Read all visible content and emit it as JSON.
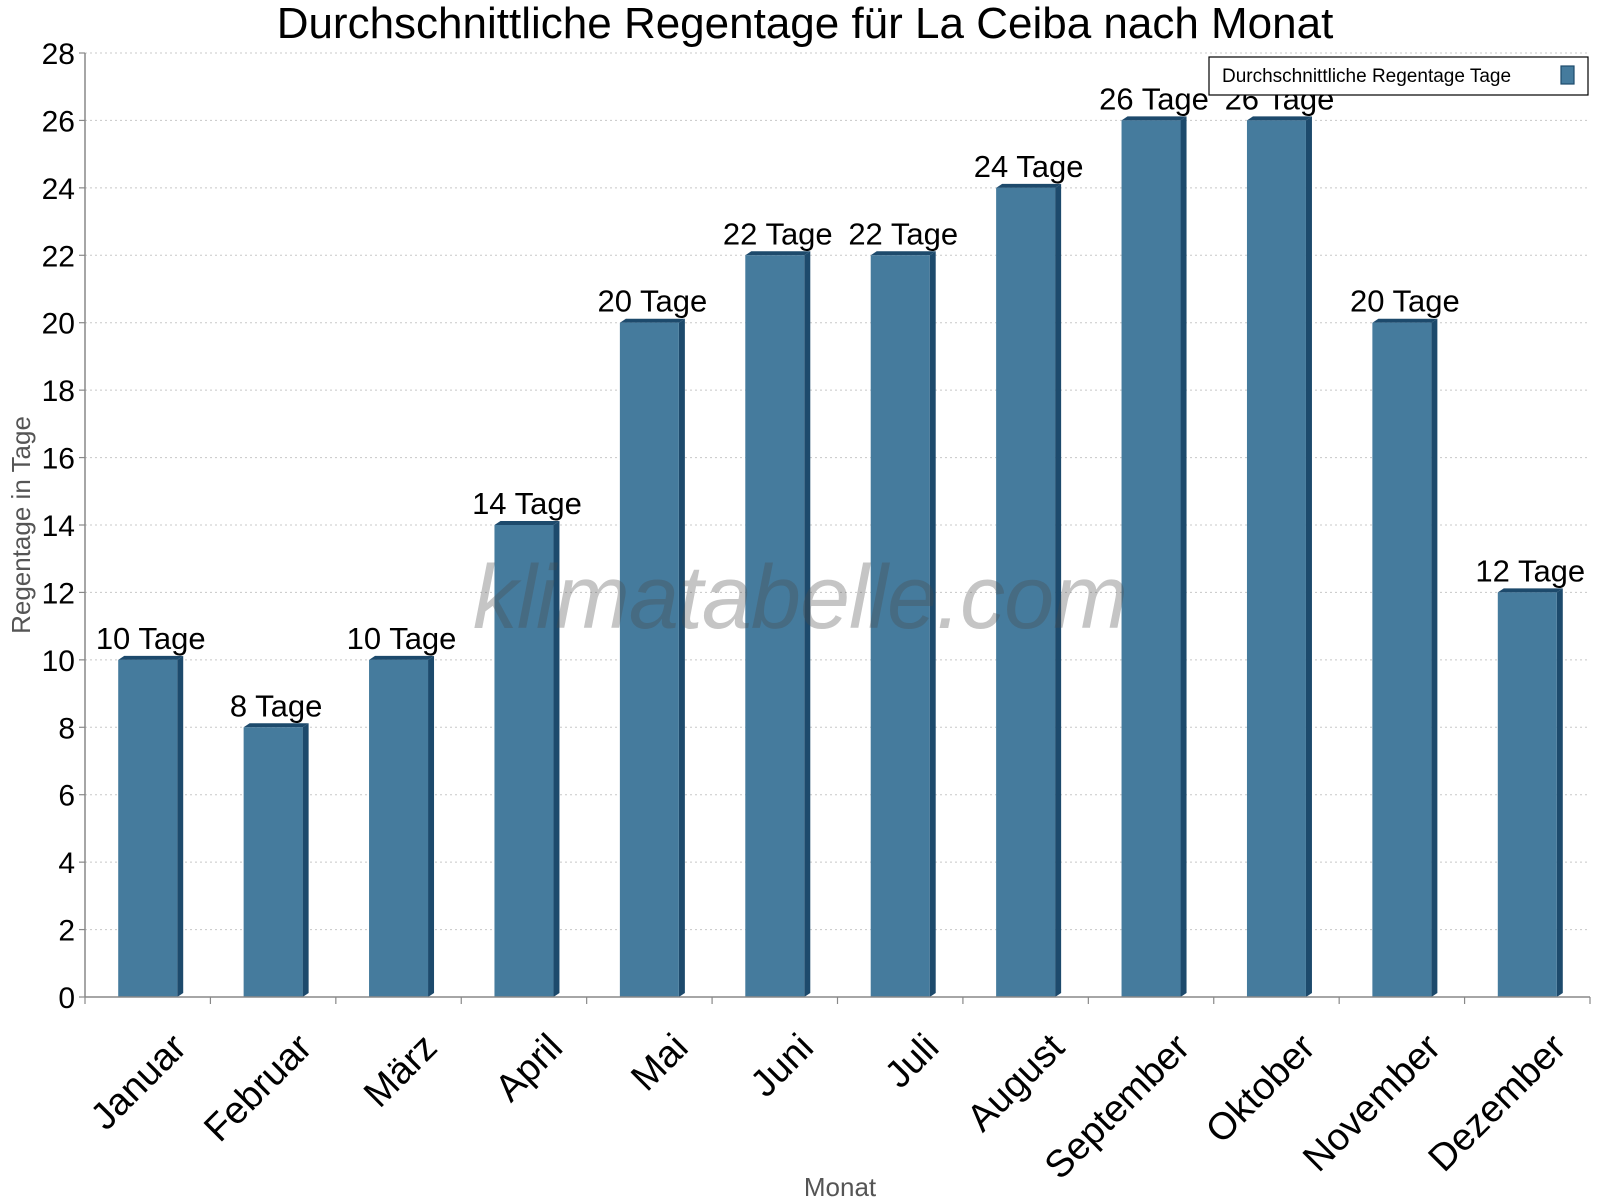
{
  "chart_data": {
    "type": "bar",
    "title": "Durchschnittliche Regentage für La Ceiba nach Monat",
    "xlabel": "Monat",
    "ylabel": "Regentage in Tage",
    "categories": [
      "Januar",
      "Februar",
      "März",
      "April",
      "Mai",
      "Juni",
      "Juli",
      "August",
      "September",
      "Oktober",
      "November",
      "Dezember"
    ],
    "series": [
      {
        "name": "Durchschnittliche Regentage Tage",
        "values": [
          10,
          8,
          10,
          14,
          20,
          22,
          22,
          24,
          26,
          26,
          20,
          12
        ],
        "color": "#457b9d"
      }
    ],
    "data_labels": [
      "10 Tage",
      "8 Tage",
      "10 Tage",
      "14 Tage",
      "20 Tage",
      "22 Tage",
      "22 Tage",
      "24 Tage",
      "26 Tage",
      "26 Tage",
      "20 Tage",
      "12 Tage"
    ],
    "y_ticks": [
      "0",
      "2",
      "4",
      "6",
      "8",
      "10",
      "12",
      "14",
      "16",
      "18",
      "20",
      "22",
      "24",
      "26",
      "28"
    ],
    "ylim": [
      0,
      28
    ],
    "grid": true,
    "legend_position": "top-right",
    "watermark": "klimatabelle.com",
    "colors": {
      "bar": "#457b9d",
      "bar_dark": "#1d4a6c",
      "grid": "#c8c8c8",
      "axis": "#888888"
    }
  }
}
